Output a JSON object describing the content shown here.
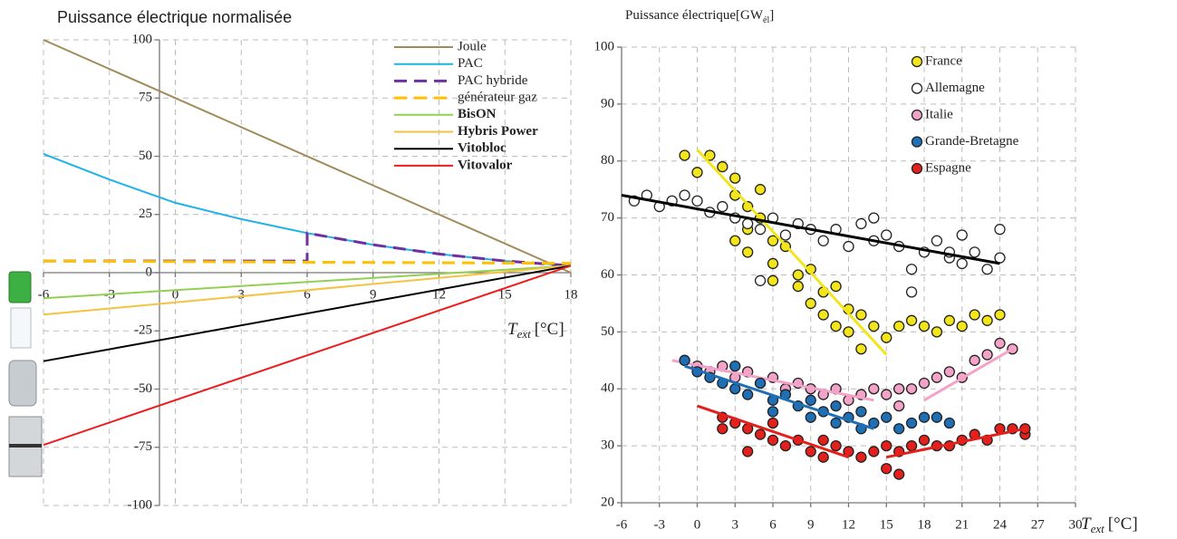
{
  "chart_data": [
    {
      "type": "line",
      "title": "Puissance électrique normalisée",
      "x_label": {
        "name": "T",
        "sub": "ext",
        "unit": "[°C]"
      },
      "xlim": [
        -6,
        18
      ],
      "ylim": [
        -100,
        100
      ],
      "xticks": [
        -6,
        -3,
        0,
        3,
        6,
        9,
        12,
        15,
        18
      ],
      "yticks": [
        -100,
        -75,
        -50,
        -25,
        0,
        25,
        50,
        75,
        100
      ],
      "grid": true,
      "legend": "upper right",
      "series": [
        {
          "name": "Joule",
          "color": "#a08c5a",
          "x": [
            -6,
            18
          ],
          "values": [
            100,
            0
          ]
        },
        {
          "name": "PAC",
          "color": "#1fb2e8",
          "x": [
            -6,
            -3,
            0,
            3,
            6,
            9,
            12,
            15,
            18
          ],
          "values": [
            51,
            40,
            30,
            23,
            17,
            12,
            8,
            5,
            3
          ]
        },
        {
          "name": "PAC hybride",
          "color": "#7030a0",
          "dashed": true,
          "x": [
            -6,
            6,
            6,
            9,
            12,
            15,
            18
          ],
          "values": [
            5,
            5,
            17,
            12,
            8,
            5,
            3
          ]
        },
        {
          "name": "générateur gaz",
          "color": "#ffc000",
          "dashed": true,
          "x": [
            -6,
            18
          ],
          "values": [
            5,
            4
          ]
        },
        {
          "name": "BisON",
          "color": "#92d050",
          "bold": true,
          "x": [
            -6,
            18
          ],
          "values": [
            -11,
            3
          ]
        },
        {
          "name": "Hybris Power",
          "color": "#f5c242",
          "bold": true,
          "x": [
            -6,
            18
          ],
          "values": [
            -18,
            3
          ]
        },
        {
          "name": "Vitobloc",
          "color": "#000000",
          "bold": true,
          "x": [
            -6,
            18
          ],
          "values": [
            -38,
            3
          ]
        },
        {
          "name": "Vitovalor",
          "color": "#ee1c1c",
          "bold": true,
          "x": [
            -6,
            18
          ],
          "values": [
            -74,
            3
          ]
        }
      ]
    },
    {
      "type": "scatter",
      "title": {
        "main": "Puissance électrique[GW",
        "sub": "él",
        "end": "]"
      },
      "x_label": {
        "name": "T",
        "sub": "ext",
        "unit": "[°C]"
      },
      "xlim": [
        -6,
        30
      ],
      "ylim": [
        20,
        100
      ],
      "xticks": [
        -6,
        -3,
        0,
        3,
        6,
        9,
        12,
        15,
        18,
        21,
        24,
        27,
        30
      ],
      "yticks": [
        20,
        30,
        40,
        50,
        60,
        70,
        80,
        90,
        100
      ],
      "grid": true,
      "legend": "upper right",
      "series": [
        {
          "name": "France",
          "color": "#f2e51b",
          "line_color": "#f2e51b",
          "x": [
            -1,
            0,
            1,
            2,
            3,
            3,
            4,
            4,
            5,
            5,
            6,
            6,
            7,
            8,
            8,
            9,
            9,
            10,
            10,
            11,
            11,
            12,
            12,
            13,
            13,
            14,
            15,
            16,
            17,
            18,
            19,
            20,
            21,
            22,
            23,
            24,
            6,
            3,
            4
          ],
          "values": [
            81,
            78,
            81,
            79,
            77,
            74,
            72,
            68,
            75,
            70,
            66,
            62,
            65,
            60,
            58,
            61,
            55,
            57,
            53,
            58,
            51,
            54,
            50,
            53,
            47,
            51,
            49,
            51,
            52,
            51,
            50,
            52,
            51,
            53,
            52,
            53,
            59,
            66,
            64
          ],
          "trend": [
            {
              "x": [
                0,
                15
              ],
              "values": [
                82,
                46
              ]
            }
          ]
        },
        {
          "name": "Allemagne",
          "color": "#ffffff",
          "line_color": "#000000",
          "x": [
            -5,
            -4,
            -3,
            -2,
            -1,
            0,
            1,
            2,
            3,
            4,
            5,
            6,
            7,
            8,
            9,
            10,
            11,
            12,
            13,
            14,
            15,
            16,
            17,
            17,
            18,
            19,
            20,
            21,
            21,
            22,
            23,
            24,
            24,
            5,
            14,
            20
          ],
          "values": [
            73,
            74,
            72,
            73,
            74,
            73,
            71,
            72,
            70,
            69,
            68,
            70,
            67,
            69,
            68,
            66,
            68,
            65,
            69,
            66,
            67,
            65,
            61,
            57,
            64,
            66,
            63,
            62,
            67,
            64,
            61,
            63,
            68,
            59,
            70,
            64
          ],
          "trend": [
            {
              "x": [
                -6,
                24
              ],
              "values": [
                74,
                62
              ]
            }
          ]
        },
        {
          "name": "Italie",
          "color": "#f4a3c8",
          "line_color": "#f4a3c8",
          "x": [
            -1,
            0,
            1,
            2,
            3,
            4,
            5,
            6,
            7,
            8,
            9,
            10,
            11,
            12,
            13,
            14,
            15,
            16,
            17,
            18,
            19,
            20,
            21,
            22,
            23,
            24,
            25,
            16
          ],
          "values": [
            45,
            44,
            43,
            44,
            42,
            43,
            41,
            42,
            40,
            41,
            40,
            39,
            40,
            38,
            39,
            40,
            39,
            40,
            40,
            41,
            42,
            43,
            42,
            45,
            46,
            48,
            47,
            37
          ],
          "trend": [
            {
              "x": [
                -2,
                14
              ],
              "values": [
                45,
                38
              ]
            },
            {
              "x": [
                18,
                25
              ],
              "values": [
                38,
                47
              ]
            }
          ]
        },
        {
          "name": "Grande-Bretagne",
          "color": "#1f6fb5",
          "line_color": "#1f6fb5",
          "x": [
            -1,
            0,
            1,
            2,
            3,
            3,
            4,
            5,
            6,
            6,
            7,
            8,
            9,
            9,
            10,
            11,
            11,
            12,
            13,
            13,
            14,
            15,
            16,
            17,
            18,
            19,
            20
          ],
          "values": [
            45,
            43,
            42,
            41,
            44,
            40,
            39,
            41,
            38,
            36,
            39,
            37,
            35,
            38,
            36,
            34,
            37,
            35,
            33,
            36,
            34,
            35,
            33,
            34,
            35,
            35,
            34
          ],
          "trend": [
            {
              "x": [
                -1,
                14
              ],
              "values": [
                44,
                33
              ]
            }
          ]
        },
        {
          "name": "Espagne",
          "color": "#e3201b",
          "line_color": "#e3201b",
          "x": [
            2,
            2,
            3,
            4,
            4,
            5,
            6,
            6,
            7,
            8,
            9,
            10,
            10,
            11,
            12,
            13,
            14,
            15,
            15,
            16,
            16,
            17,
            18,
            19,
            20,
            21,
            22,
            23,
            24,
            25,
            26,
            26
          ],
          "values": [
            35,
            33,
            34,
            29,
            33,
            32,
            31,
            34,
            30,
            31,
            29,
            28,
            31,
            30,
            29,
            28,
            29,
            30,
            26,
            25,
            29,
            30,
            31,
            30,
            30,
            31,
            32,
            31,
            33,
            33,
            32,
            33
          ],
          "trend": [
            {
              "x": [
                0,
                12
              ],
              "values": [
                37,
                28
              ]
            },
            {
              "x": [
                15,
                26
              ],
              "values": [
                28,
                33
              ]
            }
          ]
        }
      ]
    }
  ]
}
